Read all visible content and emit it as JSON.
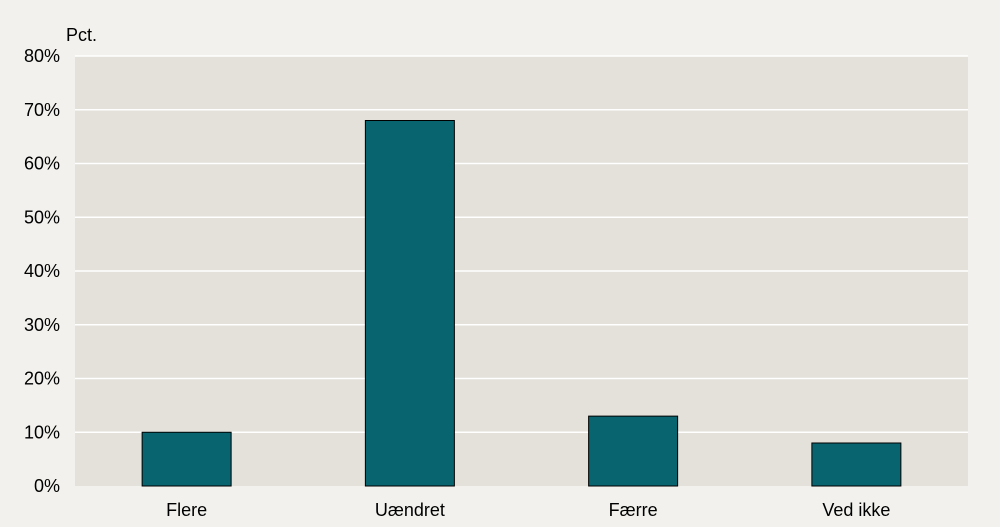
{
  "chart_data": {
    "type": "bar",
    "ylabel": "Pct.",
    "categories": [
      "Flere",
      "Uændret",
      "Færre",
      "Ved ikke"
    ],
    "series": [
      {
        "values": [
          10,
          68,
          13,
          8
        ]
      }
    ],
    "ylim": [
      0,
      80
    ],
    "yticks": [
      "0%",
      "10%",
      "20%",
      "30%",
      "40%",
      "50%",
      "60%",
      "70%",
      "80%"
    ],
    "grid": true,
    "legend": "none",
    "colors": {
      "bar": "#08646f",
      "plot_background": "#e3e1d9",
      "page_background": "#f2f1ed",
      "gridline": "#ffffff"
    }
  }
}
